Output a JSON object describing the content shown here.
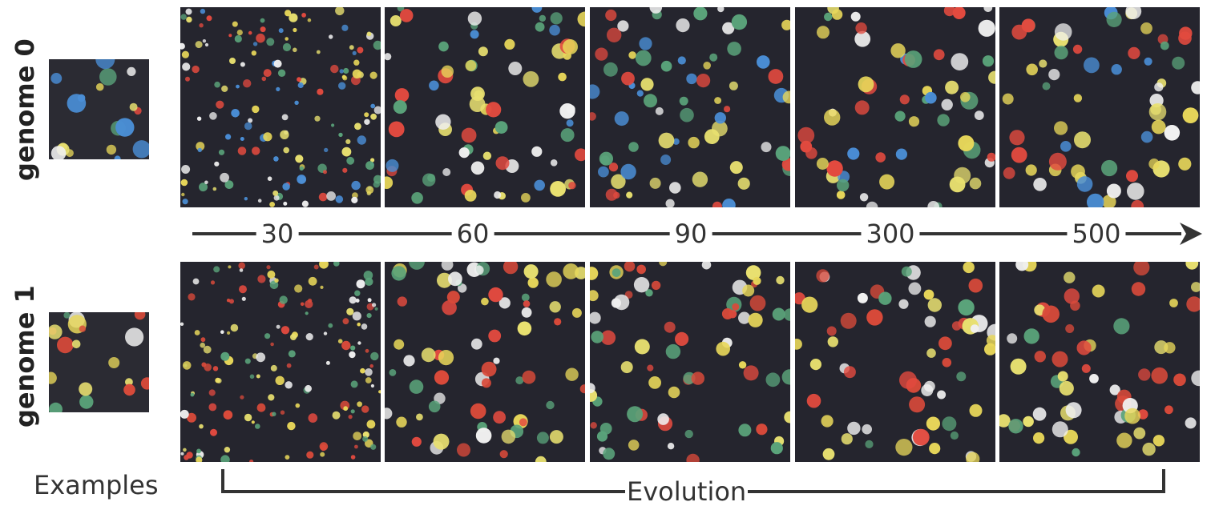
{
  "rows": [
    {
      "label": "genome 0",
      "palette": [
        "#e8d75a",
        "#e24a3f",
        "#4a8ed6",
        "#5aa37a",
        "#f0f0f0",
        "#e8e070"
      ]
    },
    {
      "label": "genome 1",
      "palette": [
        "#e8d75a",
        "#e24a3f",
        "#5aa37a",
        "#f0f0f0",
        "#e8e070",
        "#d94a3a"
      ]
    }
  ],
  "evolution_steps": [
    "30",
    "60",
    "90",
    "300",
    "500"
  ],
  "examples_label": "Examples",
  "evolution_label": "Evolution"
}
